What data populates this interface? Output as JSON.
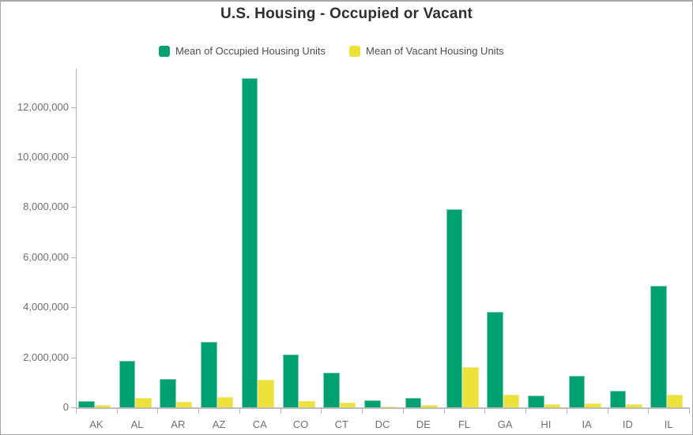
{
  "title": "U.S. Housing - Occupied or Vacant",
  "legend": {
    "items": [
      {
        "label": "Mean of Occupied Housing Units",
        "color": "#00a170"
      },
      {
        "label": "Mean of Vacant Housing Units",
        "color": "#ede23c"
      }
    ]
  },
  "colors": {
    "occupied_bar": "#00a170",
    "occupied_edge": "#7fcdb0",
    "vacant_bar": "#ede23c",
    "vacant_edge": "#f2ea80",
    "axis_line": "#b3b3b3",
    "axis_label_text": "#6e6e6e",
    "title_text": "#2f2f2f",
    "legend_text": "#4c4c4c"
  },
  "chart_data": {
    "type": "bar",
    "title": "U.S. Housing - Occupied or Vacant",
    "categories": [
      "AK",
      "AL",
      "AR",
      "AZ",
      "CA",
      "CO",
      "CT",
      "DC",
      "DE",
      "FL",
      "GA",
      "HI",
      "IA",
      "ID",
      "IL"
    ],
    "series": [
      {
        "name": "Mean of Occupied Housing Units",
        "color": "#00a170",
        "values": [
          250000,
          1870000,
          1150000,
          2620000,
          13150000,
          2100000,
          1380000,
          280000,
          380000,
          7930000,
          3820000,
          460000,
          1260000,
          650000,
          4870000
        ]
      },
      {
        "name": "Mean of Vacant Housing Units",
        "color": "#ede23c",
        "values": [
          80000,
          380000,
          220000,
          420000,
          1100000,
          260000,
          180000,
          30000,
          100000,
          1620000,
          500000,
          120000,
          150000,
          130000,
          490000
        ]
      }
    ],
    "xlabel": "",
    "ylabel": "",
    "ylim": [
      0,
      13530000
    ],
    "yticks": [
      0,
      2000000,
      4000000,
      6000000,
      8000000,
      10000000,
      12000000
    ],
    "grid": false,
    "legend_position": "top"
  }
}
